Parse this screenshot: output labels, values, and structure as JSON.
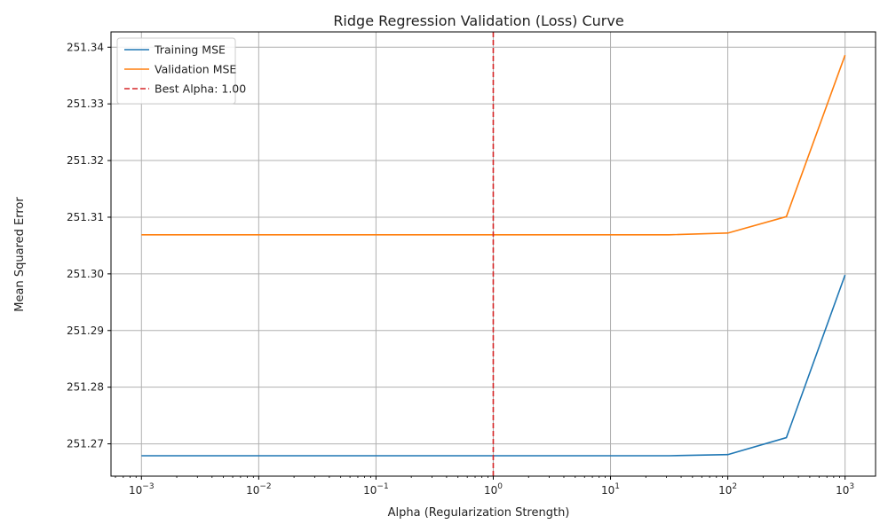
{
  "chart_data": {
    "type": "line",
    "title": "Ridge Regression Validation (Loss) Curve",
    "xlabel": "Alpha (Regularization Strength)",
    "ylabel": "Mean Squared Error",
    "x_scale": "log",
    "xlim": [
      0.00055,
      1820
    ],
    "ylim": [
      251.2643,
      251.3427
    ],
    "grid": true,
    "legend_position": "top-left",
    "x_ticks": [
      {
        "value": 0.001,
        "base": "10",
        "exp": "−3"
      },
      {
        "value": 0.01,
        "base": "10",
        "exp": "−2"
      },
      {
        "value": 0.1,
        "base": "10",
        "exp": "−1"
      },
      {
        "value": 1,
        "base": "10",
        "exp": "0"
      },
      {
        "value": 10,
        "base": "10",
        "exp": "1"
      },
      {
        "value": 100,
        "base": "10",
        "exp": "2"
      },
      {
        "value": 1000,
        "base": "10",
        "exp": "3"
      }
    ],
    "y_ticks": [
      {
        "value": 251.27,
        "label": "251.27"
      },
      {
        "value": 251.28,
        "label": "251.28"
      },
      {
        "value": 251.29,
        "label": "251.29"
      },
      {
        "value": 251.3,
        "label": "251.30"
      },
      {
        "value": 251.31,
        "label": "251.31"
      },
      {
        "value": 251.32,
        "label": "251.32"
      },
      {
        "value": 251.33,
        "label": "251.33"
      },
      {
        "value": 251.34,
        "label": "251.34"
      }
    ],
    "x": [
      0.001,
      0.00316,
      0.01,
      0.0316,
      0.1,
      0.316,
      1,
      3.16,
      10,
      31.6,
      100,
      316,
      1000
    ],
    "series": [
      {
        "name": "Training MSE",
        "color": "#1f77b4",
        "style": "solid",
        "values": [
          251.2679,
          251.2679,
          251.2679,
          251.2679,
          251.2679,
          251.2679,
          251.2679,
          251.2679,
          251.2679,
          251.2679,
          251.2681,
          251.2711,
          251.2998
        ]
      },
      {
        "name": "Validation MSE",
        "color": "#ff7f0e",
        "style": "solid",
        "values": [
          251.3069,
          251.3069,
          251.3069,
          251.3069,
          251.3069,
          251.3069,
          251.3069,
          251.3069,
          251.3069,
          251.3069,
          251.3072,
          251.3101,
          251.3386
        ]
      }
    ],
    "vlines": [
      {
        "name": "Best Alpha: 1.00",
        "x": 1,
        "color": "#d62728",
        "style": "dashed"
      }
    ]
  }
}
